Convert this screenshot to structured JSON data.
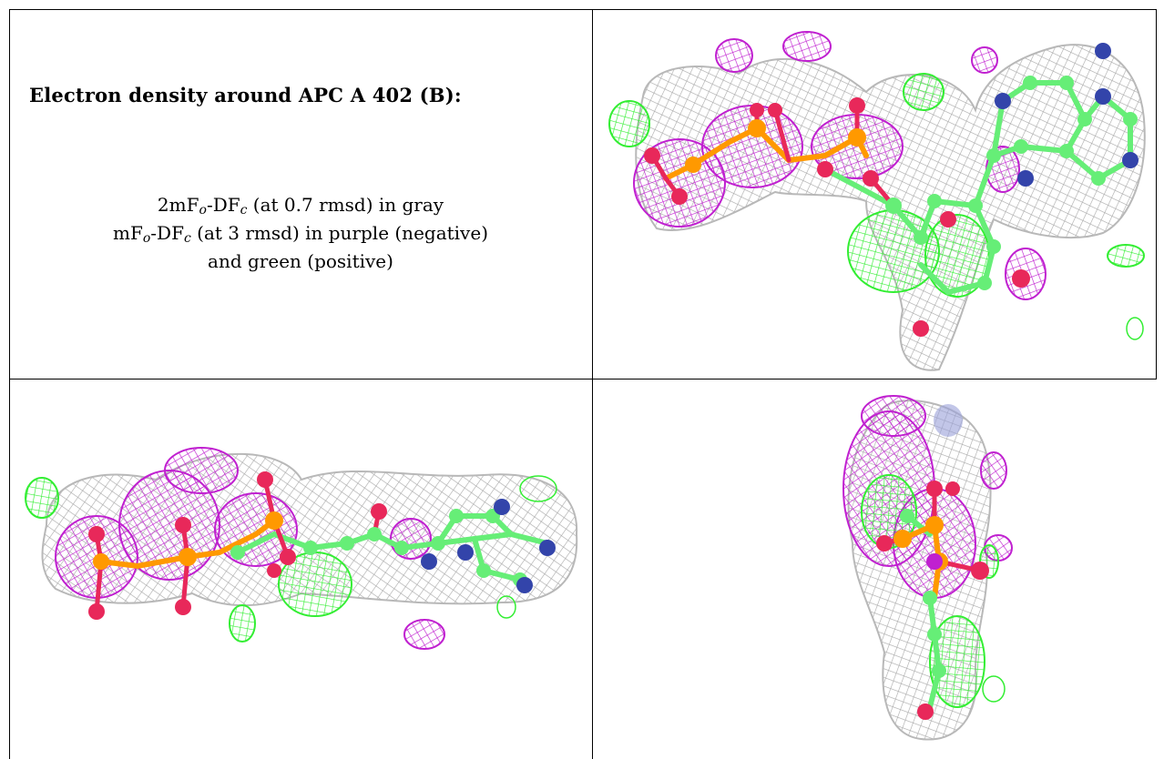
{
  "caption": {
    "title": "Electron density around APC A 402 (B):",
    "line1": {
      "prefix": "2mF",
      "sub1": "o",
      "mid": "-DF",
      "sub2": "c",
      "suffix": " (at 0.7 rmsd) in gray"
    },
    "line2": {
      "prefix": "mF",
      "sub1": "o",
      "mid": "-DF",
      "sub2": "c",
      "suffix": " (at 3 rmsd) in purple (negative)"
    },
    "line3": "and green (positive)"
  },
  "colors": {
    "map_2fofc": "#b0b0b0",
    "map_negative": "#c020d0",
    "map_positive": "#33ee33",
    "carbon": "#66ee77",
    "oxygen": "#e8285a",
    "phosphorus": "#ff9900",
    "nitrogen": "#3344aa"
  },
  "panels": [
    {
      "id": "view-top-right",
      "icon": "density-map-view"
    },
    {
      "id": "view-bottom-left",
      "icon": "density-map-view"
    },
    {
      "id": "view-bottom-right",
      "icon": "density-map-view"
    }
  ]
}
